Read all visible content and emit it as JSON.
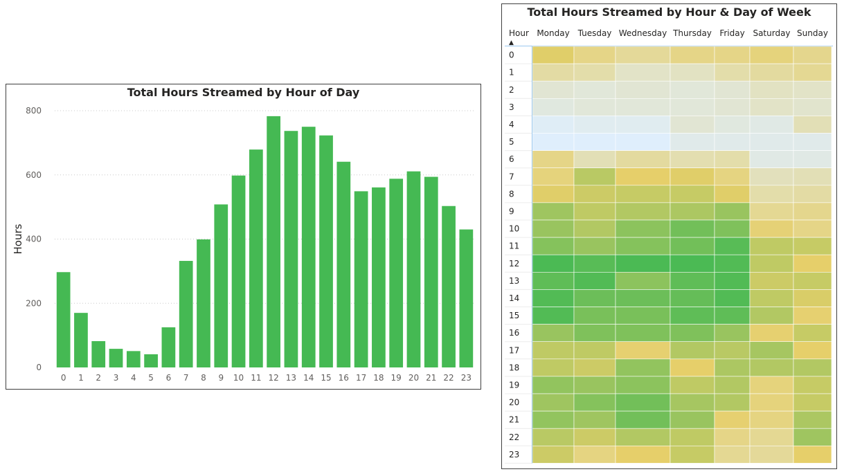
{
  "chart_data": [
    {
      "type": "bar",
      "title": "Total Hours Streamed by Hour of Day",
      "xlabel": "",
      "ylabel": "Hours",
      "ylim": [
        0,
        800
      ],
      "yticks": [
        0,
        200,
        400,
        600,
        800
      ],
      "grid": "horizontal-dotted",
      "bar_color": "#45b953",
      "categories": [
        "0",
        "1",
        "2",
        "3",
        "4",
        "5",
        "6",
        "7",
        "8",
        "9",
        "10",
        "11",
        "12",
        "13",
        "14",
        "15",
        "16",
        "17",
        "18",
        "19",
        "20",
        "21",
        "22",
        "23"
      ],
      "values": [
        297,
        170,
        82,
        58,
        51,
        41,
        125,
        332,
        399,
        508,
        598,
        679,
        783,
        737,
        750,
        723,
        641,
        549,
        561,
        588,
        611,
        594,
        503,
        430
      ]
    },
    {
      "type": "heatmap",
      "title": "Total Hours Streamed by Hour & Day of Week",
      "row_header": "Hour",
      "sort_indicator": "▲",
      "columns": [
        "Monday",
        "Tuesday",
        "Wednesday",
        "Thursday",
        "Friday",
        "Saturday",
        "Sunday"
      ],
      "rows": [
        "0",
        "1",
        "2",
        "3",
        "4",
        "5",
        "6",
        "7",
        "8",
        "9",
        "10",
        "11",
        "12",
        "13",
        "14",
        "15",
        "16",
        "17",
        "18",
        "19",
        "20",
        "21",
        "22",
        "23"
      ],
      "color_scale": {
        "low": "#dfeefc",
        "mid": "#e6cf6a",
        "high": "#45b953"
      },
      "values": [
        [
          0.52,
          0.4,
          0.34,
          0.4,
          0.4,
          0.44,
          0.38
        ],
        [
          0.3,
          0.28,
          0.18,
          0.2,
          0.28,
          0.32,
          0.36
        ],
        [
          0.14,
          0.12,
          0.14,
          0.12,
          0.14,
          0.2,
          0.18
        ],
        [
          0.1,
          0.12,
          0.12,
          0.12,
          0.14,
          0.18,
          0.16
        ],
        [
          0.02,
          0.04,
          0.04,
          0.14,
          0.1,
          0.08,
          0.24
        ],
        [
          0.0,
          0.0,
          0.0,
          0.06,
          0.06,
          0.06,
          0.06
        ],
        [
          0.4,
          0.24,
          0.32,
          0.26,
          0.28,
          0.08,
          0.08
        ],
        [
          0.44,
          0.64,
          0.5,
          0.52,
          0.42,
          0.22,
          0.24
        ],
        [
          0.52,
          0.58,
          0.6,
          0.6,
          0.52,
          0.28,
          0.3
        ],
        [
          0.72,
          0.62,
          0.66,
          0.68,
          0.74,
          0.36,
          0.38
        ],
        [
          0.74,
          0.66,
          0.78,
          0.86,
          0.82,
          0.46,
          0.4
        ],
        [
          0.8,
          0.74,
          0.8,
          0.86,
          0.94,
          0.62,
          0.6
        ],
        [
          0.98,
          0.94,
          0.98,
          0.98,
          0.96,
          0.62,
          0.5
        ],
        [
          0.92,
          0.96,
          0.78,
          0.92,
          0.96,
          0.58,
          0.6
        ],
        [
          0.96,
          0.88,
          0.88,
          0.9,
          0.96,
          0.62,
          0.54
        ],
        [
          0.96,
          0.84,
          0.84,
          0.92,
          0.92,
          0.66,
          0.48
        ],
        [
          0.74,
          0.82,
          0.82,
          0.82,
          0.74,
          0.48,
          0.6
        ],
        [
          0.62,
          0.62,
          0.48,
          0.66,
          0.64,
          0.7,
          0.5
        ],
        [
          0.62,
          0.58,
          0.76,
          0.5,
          0.68,
          0.66,
          0.66
        ],
        [
          0.76,
          0.74,
          0.78,
          0.62,
          0.66,
          0.44,
          0.6
        ],
        [
          0.72,
          0.8,
          0.86,
          0.7,
          0.66,
          0.44,
          0.6
        ],
        [
          0.76,
          0.72,
          0.86,
          0.74,
          0.48,
          0.42,
          0.68
        ],
        [
          0.64,
          0.58,
          0.66,
          0.62,
          0.4,
          0.36,
          0.72
        ],
        [
          0.58,
          0.42,
          0.5,
          0.6,
          0.36,
          0.34,
          0.5
        ]
      ]
    }
  ]
}
